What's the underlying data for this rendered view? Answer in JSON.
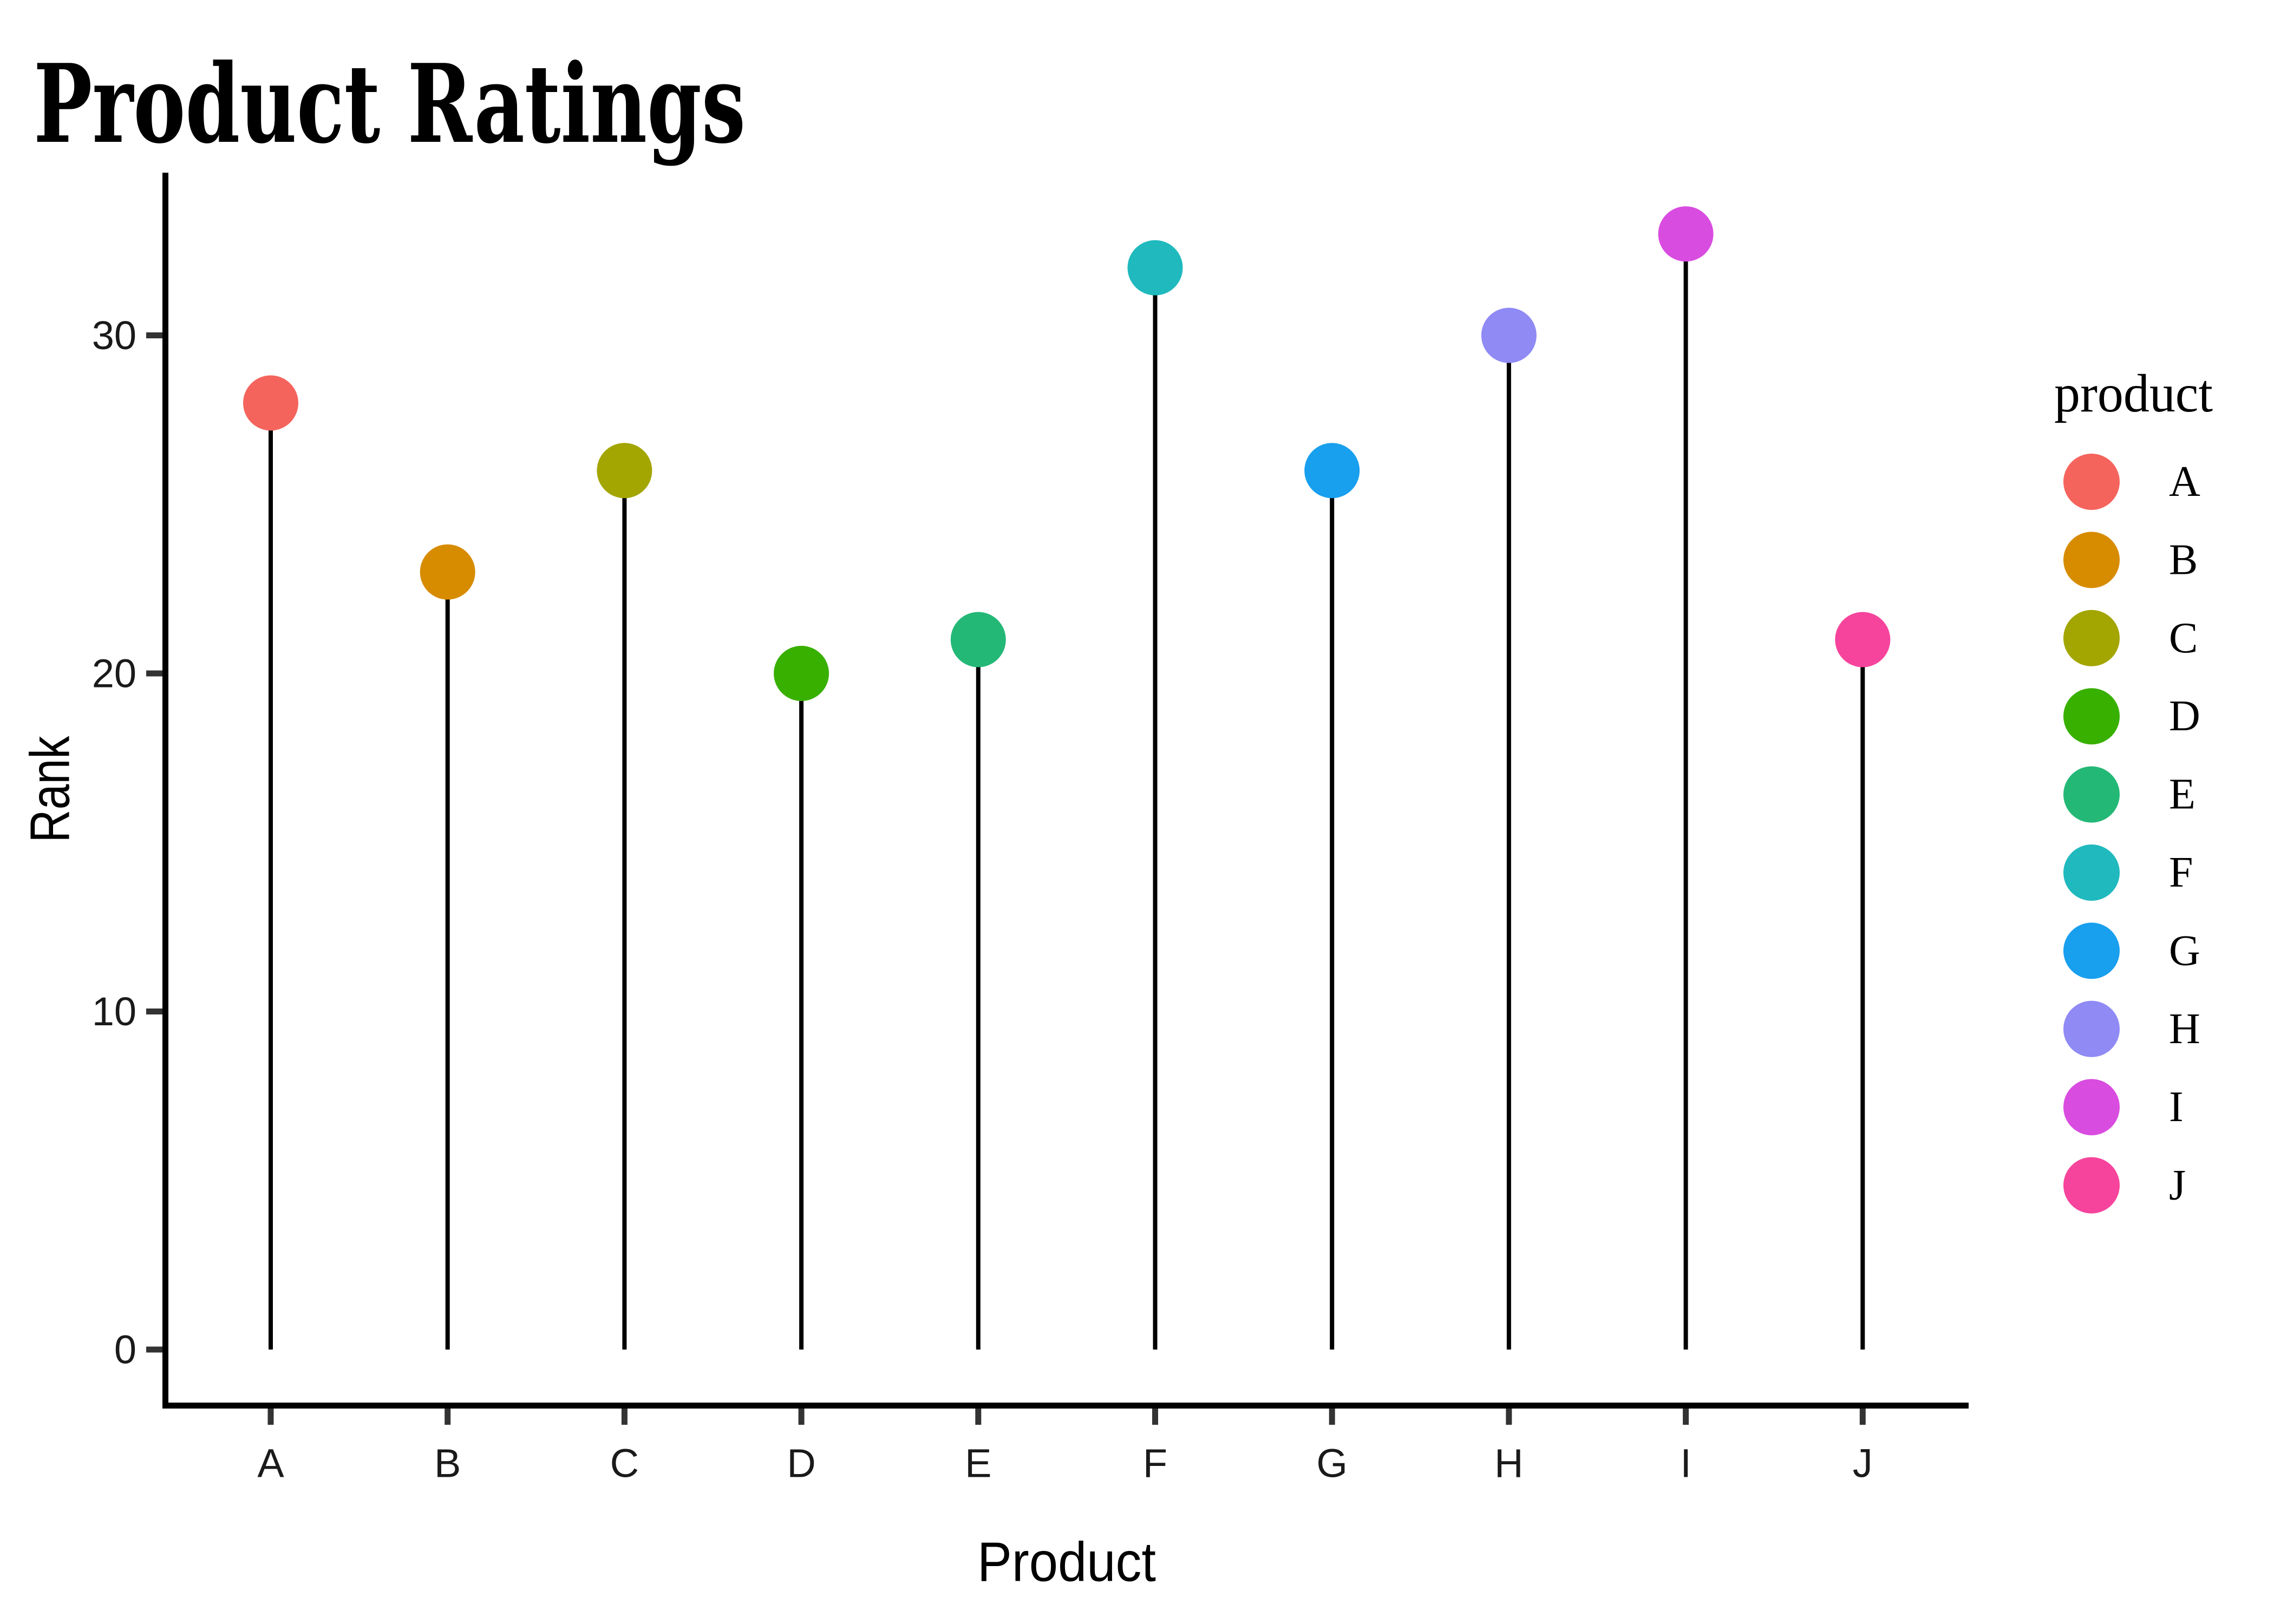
{
  "page": {
    "background": "#ffffff"
  },
  "chart_data": {
    "type": "lollipop",
    "title": "Product Ratings",
    "xlabel": "Product",
    "ylabel": "Rank",
    "categories": [
      "A",
      "B",
      "C",
      "D",
      "E",
      "F",
      "G",
      "H",
      "I",
      "J"
    ],
    "values": [
      28,
      23,
      26,
      20,
      21,
      32,
      26,
      30,
      33,
      21
    ],
    "point_colors": [
      "#F4645D",
      "#D78C00",
      "#A3A500",
      "#38B000",
      "#24B877",
      "#1FB9BE",
      "#189FEE",
      "#8F8AF4",
      "#D94CE0",
      "#F6449C"
    ],
    "stem_color": "#000000",
    "axis_color": "#000000",
    "tick_color": "#333333",
    "tick_label_color": "#1a1a1a",
    "background": "#ffffff",
    "grid": false,
    "y_ticks": [
      0,
      10,
      20,
      30
    ],
    "ylim": [
      0,
      34.65
    ],
    "legend": {
      "title": "product",
      "position": "right",
      "entries": [
        {
          "label": "A",
          "color": "#F4645D"
        },
        {
          "label": "B",
          "color": "#D78C00"
        },
        {
          "label": "C",
          "color": "#A3A500"
        },
        {
          "label": "D",
          "color": "#38B000"
        },
        {
          "label": "E",
          "color": "#24B877"
        },
        {
          "label": "F",
          "color": "#1FB9BE"
        },
        {
          "label": "G",
          "color": "#189FEE"
        },
        {
          "label": "H",
          "color": "#8F8AF4"
        },
        {
          "label": "I",
          "color": "#D94CE0"
        },
        {
          "label": "J",
          "color": "#F6449C"
        }
      ]
    }
  }
}
